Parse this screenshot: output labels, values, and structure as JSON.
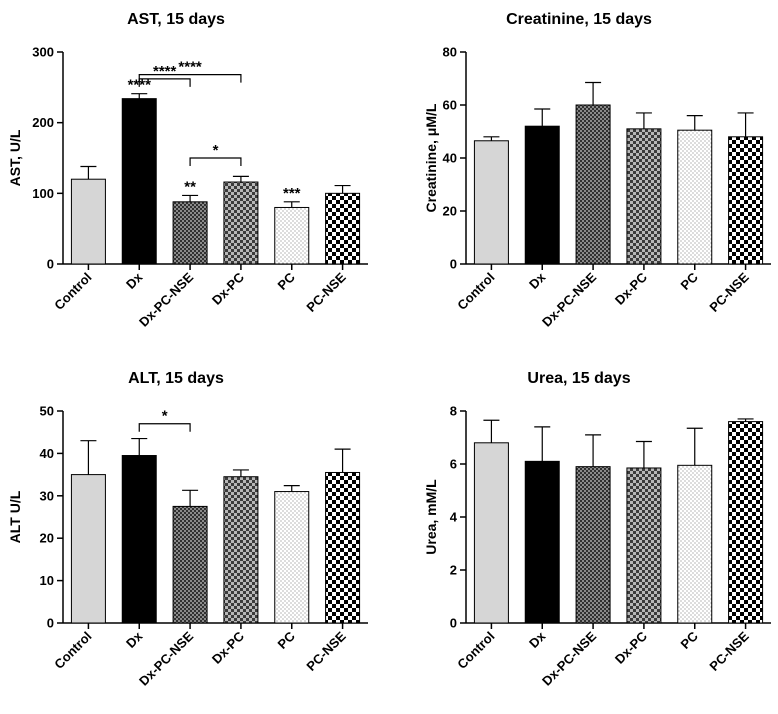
{
  "chart_data": [
    {
      "type": "bar",
      "title": "AST, 15 days",
      "ylabel": "AST, U/L",
      "xlabel": "",
      "ylim": [
        0,
        300
      ],
      "yticks": [
        0,
        100,
        200,
        300
      ],
      "categories": [
        "Control",
        "Dx",
        "Dx-PC-NSE",
        "Dx-PC",
        "PC",
        "PC-NSE"
      ],
      "values": [
        120,
        234,
        88,
        116,
        80,
        100
      ],
      "errors": [
        18,
        7,
        9,
        8,
        8,
        11
      ],
      "bar_fills": [
        "light-gray",
        "black",
        "dark-fine-check",
        "gray-checker",
        "dotted",
        "bw-checker"
      ],
      "significance": [
        {
          "bar": "Dx",
          "label": "****"
        },
        {
          "bar": "Dx-PC-NSE",
          "label": "**"
        },
        {
          "bar": "PC",
          "label": "***"
        }
      ],
      "brackets": [
        {
          "from": "Dx",
          "to": "Dx-PC",
          "label": "****",
          "y": 268
        },
        {
          "from": "Dx",
          "to": "Dx-PC-NSE",
          "label": "****",
          "y": 262
        },
        {
          "from": "Dx-PC-NSE",
          "to": "Dx-PC",
          "label": "*",
          "y": 150
        }
      ]
    },
    {
      "type": "bar",
      "title": "Creatinine, 15 days",
      "ylabel": "Creatinine, μM/L",
      "xlabel": "",
      "ylim": [
        0,
        80
      ],
      "yticks": [
        0,
        20,
        40,
        60,
        80
      ],
      "categories": [
        "Control",
        "Dx",
        "Dx-PC-NSE",
        "Dx-PC",
        "PC",
        "PC-NSE"
      ],
      "values": [
        46.5,
        52,
        60,
        51,
        50.5,
        48
      ],
      "errors": [
        1.5,
        6.5,
        8.5,
        6,
        5.5,
        9
      ],
      "bar_fills": [
        "light-gray",
        "black",
        "dark-fine-check",
        "gray-checker",
        "dotted",
        "bw-checker"
      ],
      "significance": [],
      "brackets": []
    },
    {
      "type": "bar",
      "title": "ALT, 15 days",
      "ylabel": "ALT U/L",
      "xlabel": "",
      "ylim": [
        0,
        50
      ],
      "yticks": [
        0,
        10,
        20,
        30,
        40,
        50
      ],
      "categories": [
        "Control",
        "Dx",
        "Dx-PC-NSE",
        "Dx-PC",
        "PC",
        "PC-NSE"
      ],
      "values": [
        35,
        39.5,
        27.5,
        34.5,
        31,
        35.5
      ],
      "errors": [
        8,
        4,
        3.8,
        1.6,
        1.4,
        5.5
      ],
      "bar_fills": [
        "light-gray",
        "black",
        "dark-fine-check",
        "gray-checker",
        "dotted",
        "bw-checker"
      ],
      "significance": [],
      "brackets": [
        {
          "from": "Dx",
          "to": "Dx-PC-NSE",
          "label": "*",
          "y": 47
        }
      ]
    },
    {
      "type": "bar",
      "title": "Urea, 15 days",
      "ylabel": "Urea, mM/L",
      "xlabel": "",
      "ylim": [
        0,
        8
      ],
      "yticks": [
        0,
        2,
        4,
        6,
        8
      ],
      "categories": [
        "Control",
        "Dx",
        "Dx-PC-NSE",
        "Dx-PC",
        "PC",
        "PC-NSE"
      ],
      "values": [
        6.8,
        6.1,
        5.9,
        5.85,
        5.95,
        7.6
      ],
      "errors": [
        0.85,
        1.3,
        1.2,
        1.0,
        1.4,
        0.1
      ],
      "bar_fills": [
        "light-gray",
        "black",
        "dark-fine-check",
        "gray-checker",
        "dotted",
        "bw-checker"
      ],
      "significance": [],
      "brackets": []
    }
  ]
}
